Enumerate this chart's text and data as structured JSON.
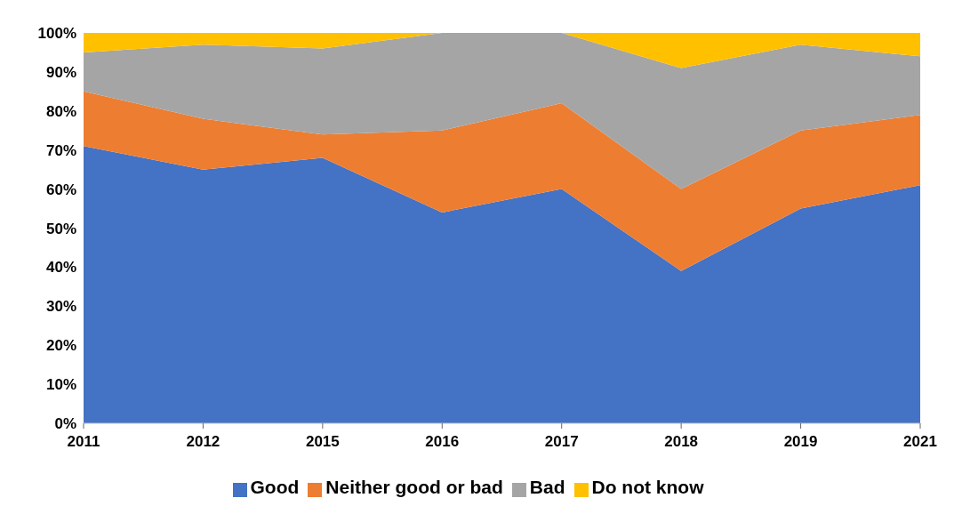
{
  "chart_data": {
    "type": "area",
    "stacked": true,
    "categories": [
      "2011",
      "2012",
      "2015",
      "2016",
      "2017",
      "2018",
      "2019",
      "2021"
    ],
    "series": [
      {
        "name": "Good",
        "color": "#4472c4",
        "values": [
          71,
          65,
          68,
          54,
          60,
          39,
          55,
          61
        ]
      },
      {
        "name": "Neither good or bad",
        "color": "#ed7d31",
        "values": [
          14,
          13,
          6,
          21,
          22,
          21,
          20,
          18
        ]
      },
      {
        "name": "Bad",
        "color": "#a5a5a5",
        "values": [
          10,
          19,
          22,
          25,
          18,
          31,
          22,
          15
        ]
      },
      {
        "name": "Do not know",
        "color": "#ffc000",
        "values": [
          5,
          3,
          4,
          0,
          0,
          9,
          3,
          6
        ]
      }
    ],
    "ylim": [
      0,
      100
    ],
    "yticks": [
      {
        "value": 0,
        "label": "0%"
      },
      {
        "value": 10,
        "label": "10%"
      },
      {
        "value": 20,
        "label": "20%"
      },
      {
        "value": 30,
        "label": "30%"
      },
      {
        "value": 40,
        "label": "40%"
      },
      {
        "value": 50,
        "label": "50%"
      },
      {
        "value": 60,
        "label": "60%"
      },
      {
        "value": 70,
        "label": "70%"
      },
      {
        "value": 80,
        "label": "80%"
      },
      {
        "value": 90,
        "label": "90%"
      },
      {
        "value": 100,
        "label": "100%"
      }
    ],
    "grid": false,
    "legend": "bottom"
  }
}
